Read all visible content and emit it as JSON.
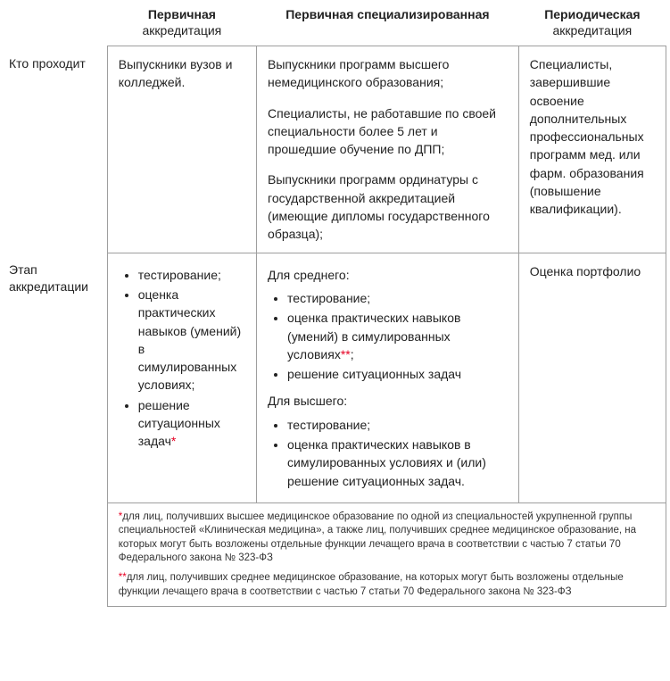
{
  "headers": {
    "col1_top": "Первичная",
    "col1_sub": "аккредитация",
    "col2_top": "Первичная специализированная",
    "col3_top": "Периодическая",
    "col3_sub": "аккредитация"
  },
  "rows": {
    "row1": {
      "label": "Кто проходит",
      "col1": "Выпускники вузов и колледжей.",
      "col2_p1": "Выпускники программ высшего немедицинского образования;",
      "col2_p2": "Специалисты, не работавшие по своей специальности более 5 лет и прошедшие обучение по ДПП;",
      "col2_p3": "Выпускники программ ординатуры с государственной аккредитацией (имеющие дипломы государственного образца);",
      "col3": "Специалисты, завершившие освоение дополнительных профессиональных программ мед. или фарм. образования (повышение квалификации)."
    },
    "row2": {
      "label": "Этап аккредита­ции",
      "col1_items": {
        "i0": "тестирование;",
        "i1": "оценка практических навыков (умений) в симулированных условиях;",
        "i2_pre": "решение ситуационных задач",
        "i2_ast": "*"
      },
      "col2": {
        "label_mid": "Для среднего:",
        "mid_items": {
          "i0": "тестирование;",
          "i1_pre": "оценка практических навыков (умений) в симулированных условиях",
          "i1_ast": "**",
          "i1_post": ";",
          "i2": "решение ситуационных задач"
        },
        "label_high": "Для высшего:",
        "high_items": {
          "i0": "тестирование;",
          "i1": "оценка практических навыков в симулированных условиях и (или) решение ситуационных задач."
        }
      },
      "col3": "Оценка портфолио"
    }
  },
  "footnotes": {
    "f1_ast": "*",
    "f1_text": "для лиц, получивших высшее медицинское образование по одной из специальностей укрупненной группы специальностей «Клиническая медицина», а также лиц, получивших среднее медицинское образование, на которых могут быть возложены отдельные функции лечащего врача в соответствии с частью 7 статьи 70 Федерального закона № 323-ФЗ",
    "f2_ast": "**",
    "f2_text": "для лиц, получивших среднее медицинское образование, на которых могут быть возложены отдельные функции лечащего врача в соответствии с частью 7 статьи 70 Федерального закона № 323-ФЗ"
  },
  "colors": {
    "border": "#9e9e9e",
    "text": "#222222",
    "asterisk": "#e60023",
    "background": "#ffffff"
  }
}
